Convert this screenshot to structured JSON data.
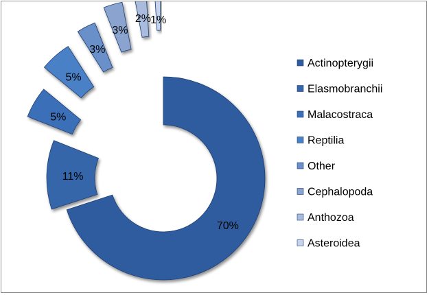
{
  "chart_data": {
    "type": "pie",
    "variant": "exploded-doughnut",
    "title": "",
    "legend_position": "right",
    "categories": [
      "Actinopterygii",
      "Elasmobranchii",
      "Malacostraca",
      "Reptilia",
      "Other",
      "Cephalopoda",
      "Anthozoa",
      "Asteroidea"
    ],
    "values": [
      70,
      11,
      5,
      5,
      3,
      3,
      2,
      1
    ],
    "labels": [
      "70%",
      "11%",
      "5%",
      "5%",
      "3%",
      "3%",
      "2%",
      "1%"
    ],
    "colors": [
      "#2f5c9e",
      "#3566aa",
      "#3b70b8",
      "#4a80c6",
      "#6990c8",
      "#8aa4cf",
      "#a9bcdd",
      "#c6d3ea"
    ]
  }
}
